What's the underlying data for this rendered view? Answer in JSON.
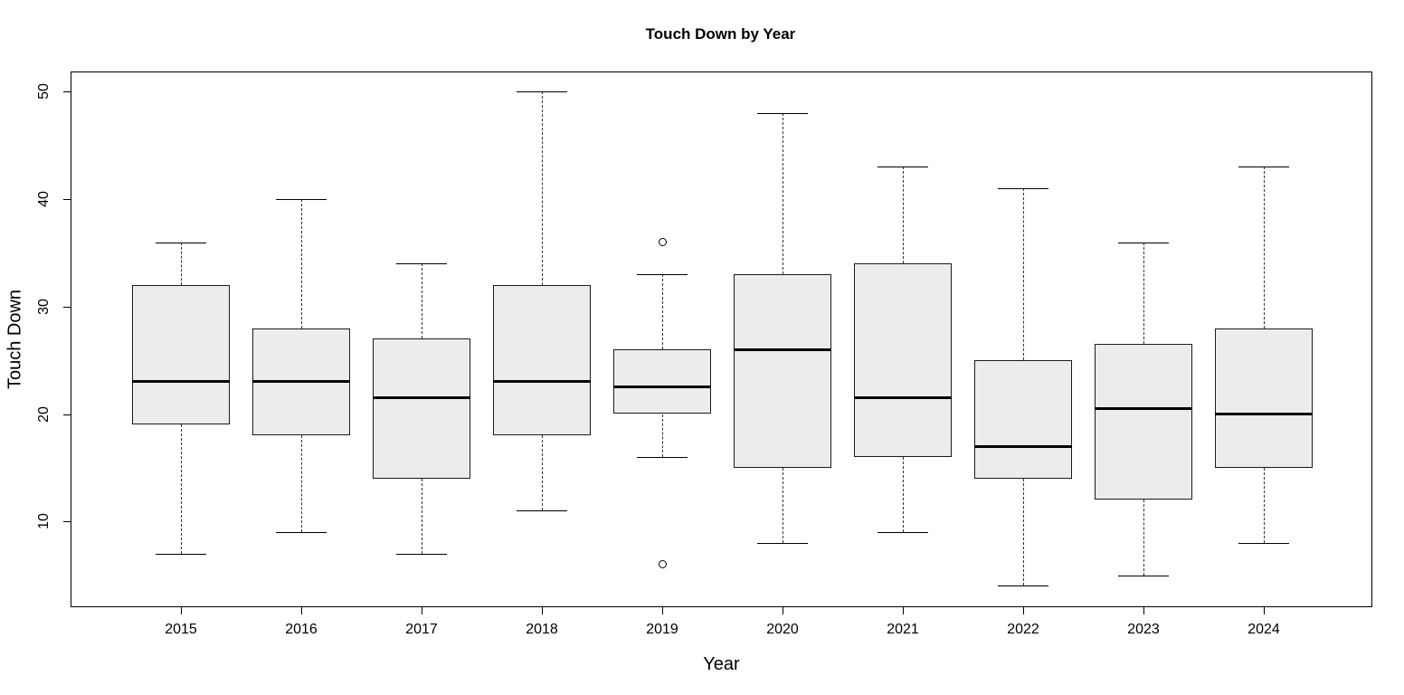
{
  "chart_data": {
    "type": "boxplot",
    "title": "Touch Down by Year",
    "xlabel": "Year",
    "ylabel": "Touch Down",
    "ylim": [
      2.1,
      51.8
    ],
    "yticks": [
      10,
      20,
      30,
      40,
      50
    ],
    "grid": false,
    "legend": "none",
    "categories": [
      "2015",
      "2016",
      "2017",
      "2018",
      "2019",
      "2020",
      "2021",
      "2022",
      "2023",
      "2024"
    ],
    "series": [
      {
        "category": "2015",
        "min": 7,
        "q1": 19,
        "median": 23,
        "q3": 32,
        "max": 36,
        "outliers": []
      },
      {
        "category": "2016",
        "min": 9,
        "q1": 18,
        "median": 23,
        "q3": 28,
        "max": 40,
        "outliers": []
      },
      {
        "category": "2017",
        "min": 7,
        "q1": 14,
        "median": 21.5,
        "q3": 27,
        "max": 34,
        "outliers": []
      },
      {
        "category": "2018",
        "min": 11,
        "q1": 18,
        "median": 23,
        "q3": 32,
        "max": 50,
        "outliers": []
      },
      {
        "category": "2019",
        "min": 16,
        "q1": 20,
        "median": 22.5,
        "q3": 26,
        "max": 33,
        "outliers": [
          36,
          6
        ]
      },
      {
        "category": "2020",
        "min": 8,
        "q1": 15,
        "median": 26,
        "q3": 33,
        "max": 48,
        "outliers": []
      },
      {
        "category": "2021",
        "min": 9,
        "q1": 16,
        "median": 21.5,
        "q3": 34,
        "max": 43,
        "outliers": []
      },
      {
        "category": "2022",
        "min": 4,
        "q1": 14,
        "median": 17,
        "q3": 25,
        "max": 41,
        "outliers": []
      },
      {
        "category": "2023",
        "min": 5,
        "q1": 12,
        "median": 20.5,
        "q3": 26.5,
        "max": 36,
        "outliers": []
      },
      {
        "category": "2024",
        "min": 8,
        "q1": 15,
        "median": 20,
        "q3": 28,
        "max": 43,
        "outliers": []
      }
    ],
    "colors": {
      "box_fill": "#ececec",
      "box_border": "#1a1a1a",
      "median": "#000000",
      "whisker": "#333333",
      "background": "#ffffff"
    }
  }
}
